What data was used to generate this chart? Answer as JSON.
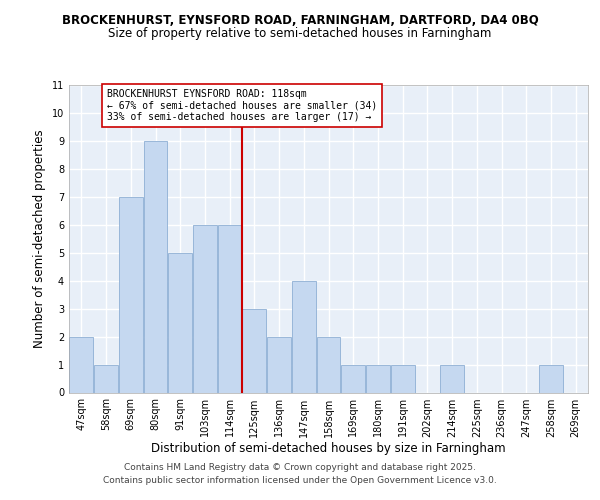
{
  "title1": "BROCKENHURST, EYNSFORD ROAD, FARNINGHAM, DARTFORD, DA4 0BQ",
  "title2": "Size of property relative to semi-detached houses in Farningham",
  "categories": [
    "47sqm",
    "58sqm",
    "69sqm",
    "80sqm",
    "91sqm",
    "103sqm",
    "114sqm",
    "125sqm",
    "136sqm",
    "147sqm",
    "158sqm",
    "169sqm",
    "180sqm",
    "191sqm",
    "202sqm",
    "214sqm",
    "225sqm",
    "236sqm",
    "247sqm",
    "258sqm",
    "269sqm"
  ],
  "values": [
    2,
    1,
    7,
    9,
    5,
    6,
    6,
    3,
    2,
    4,
    2,
    1,
    1,
    1,
    0,
    1,
    0,
    0,
    0,
    1,
    0
  ],
  "bar_color": "#c5d8f0",
  "bar_edge_color": "#8eafd4",
  "vline_index": 6,
  "vline_color": "#cc0000",
  "xlabel": "Distribution of semi-detached houses by size in Farningham",
  "ylabel": "Number of semi-detached properties",
  "ylim": [
    0,
    11
  ],
  "yticks": [
    0,
    1,
    2,
    3,
    4,
    5,
    6,
    7,
    8,
    9,
    10,
    11
  ],
  "annotation_title": "BROCKENHURST EYNSFORD ROAD: 118sqm",
  "annotation_line1": "← 67% of semi-detached houses are smaller (34)",
  "annotation_line2": "33% of semi-detached houses are larger (17) →",
  "footnote1": "Contains HM Land Registry data © Crown copyright and database right 2025.",
  "footnote2": "Contains public sector information licensed under the Open Government Licence v3.0.",
  "background_color": "#e8eff8",
  "grid_color": "#ffffff",
  "title1_fontsize": 8.5,
  "title2_fontsize": 8.5,
  "axis_label_fontsize": 8.5,
  "tick_fontsize": 7,
  "annotation_fontsize": 7,
  "footnote_fontsize": 6.5
}
